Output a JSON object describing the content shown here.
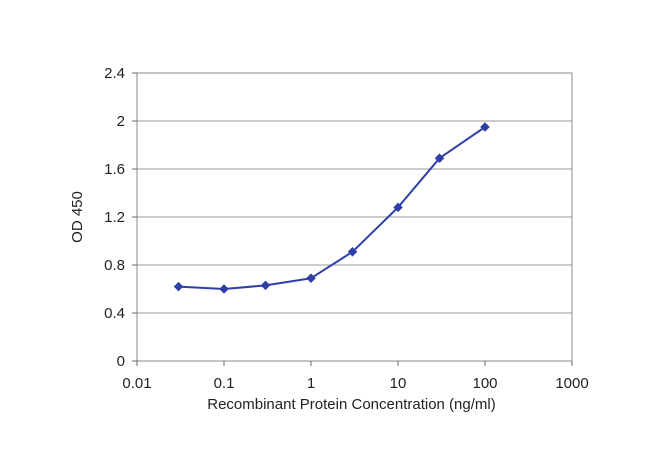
{
  "chart_data": {
    "type": "line",
    "title": "",
    "xlabel": "Recombinant Protein Concentration (ng/ml)",
    "ylabel": "OD 450",
    "xscale": "log",
    "xlim": [
      0.01,
      1000
    ],
    "ylim": [
      0,
      2.4
    ],
    "xticks": [
      "0.01",
      "0.1",
      "1",
      "10",
      "100",
      "1000"
    ],
    "yticks": [
      "0",
      "0.4",
      "0.8",
      "1.2",
      "1.6",
      "2",
      "2.4"
    ],
    "grid": "horizontal",
    "legend": "none",
    "series": [
      {
        "color": "#2f3fa8",
        "points": [
          {
            "x": 0.03,
            "y": 0.62
          },
          {
            "x": 0.1,
            "y": 0.6
          },
          {
            "x": 0.3,
            "y": 0.63
          },
          {
            "x": 1,
            "y": 0.69
          },
          {
            "x": 3,
            "y": 0.91
          },
          {
            "x": 10,
            "y": 1.28
          },
          {
            "x": 30,
            "y": 1.69
          },
          {
            "x": 100,
            "y": 1.95
          }
        ]
      }
    ]
  }
}
